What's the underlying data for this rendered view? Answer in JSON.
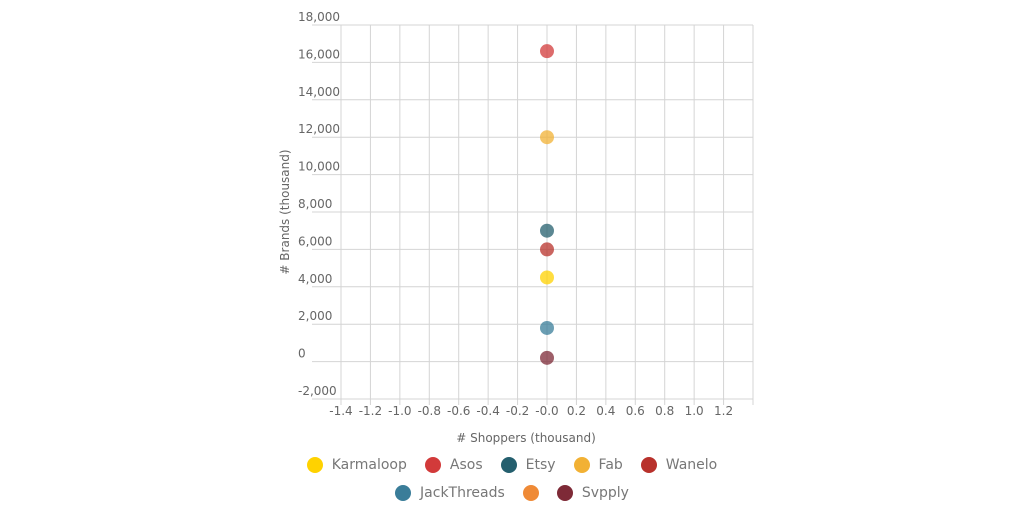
{
  "chart_data": {
    "type": "scatter",
    "x_label": "# Shoppers (thousand)",
    "y_label": "# Brands (thousand)",
    "xlim": [
      -1.4,
      1.4
    ],
    "ylim": [
      -2000,
      18000
    ],
    "xticks": [
      -1.4,
      -1.2,
      {
        "value": -1,
        "label": "-1.0"
      },
      -0.8,
      -0.6,
      -0.4,
      -0.2,
      {
        "value": 0,
        "label": "-0.0"
      },
      0.2,
      0.4,
      0.6,
      0.8,
      {
        "value": 1,
        "label": "1.0"
      },
      1.2
    ],
    "yticks": [
      {
        "value": -2000,
        "label": "-2,000"
      },
      0,
      {
        "value": 2000,
        "label": "2,000"
      },
      {
        "value": 4000,
        "label": "4,000"
      },
      {
        "value": 6000,
        "label": "6,000"
      },
      {
        "value": 8000,
        "label": "8,000"
      },
      {
        "value": 10000,
        "label": "10,000"
      },
      {
        "value": 12000,
        "label": "12,000"
      },
      {
        "value": 14000,
        "label": "14,000"
      },
      {
        "value": 16000,
        "label": "16,000"
      },
      {
        "value": 18000,
        "label": "18,000"
      }
    ],
    "grid": true,
    "series": [
      {
        "name": "Karmaloop",
        "color": "#FFD200",
        "x": [
          0
        ],
        "values": [
          4500
        ]
      },
      {
        "name": "Asos",
        "color": "#D23A3A",
        "x": [
          0
        ],
        "values": [
          16600
        ]
      },
      {
        "name": "Etsy",
        "color": "#245F6E",
        "x": [
          0
        ],
        "values": [
          7000
        ]
      },
      {
        "name": "Fab",
        "color": "#F2B134",
        "x": [
          0
        ],
        "values": [
          12000
        ]
      },
      {
        "name": "Wanelo",
        "color": "#B8312B",
        "x": [
          0
        ],
        "values": [
          6000
        ]
      },
      {
        "name": "JackThreads",
        "color": "#3A7D99",
        "x": [
          0
        ],
        "values": [
          1800
        ]
      },
      {
        "name": null,
        "color": "#EF8A36",
        "x": [],
        "values": []
      },
      {
        "name": "Svpply",
        "color": "#7E2A37",
        "x": [
          0
        ],
        "values": [
          200
        ]
      }
    ]
  }
}
